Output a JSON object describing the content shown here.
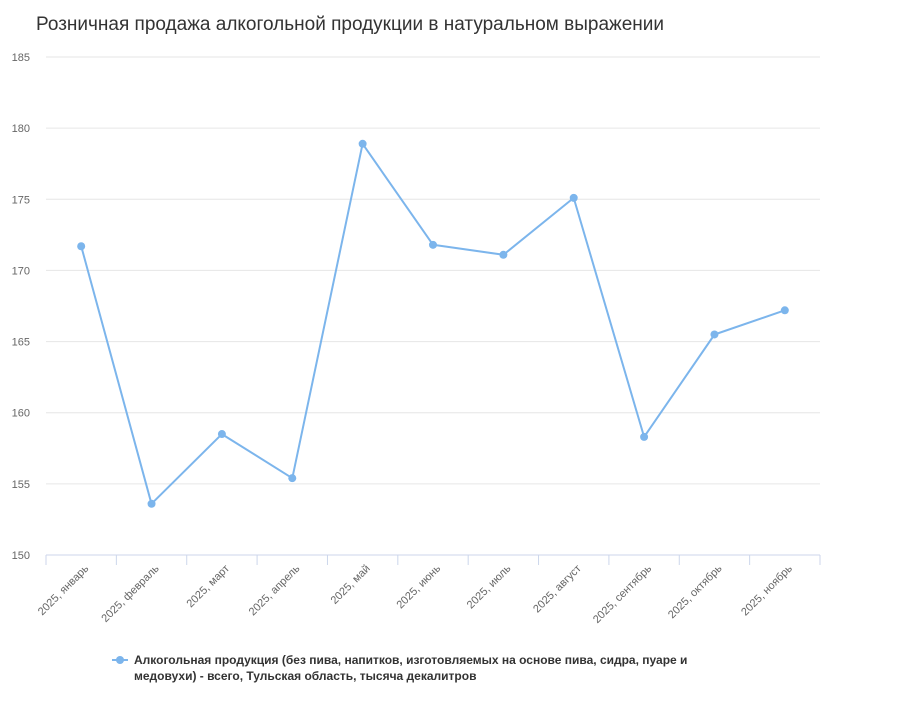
{
  "chart_data": {
    "type": "line",
    "title": "Розничная продажа алкогольной продукции в натуральном выражении",
    "categories": [
      "2025, январь",
      "2025, февраль",
      "2025, март",
      "2025, апрель",
      "2025, май",
      "2025, июнь",
      "2025, июль",
      "2025, август",
      "2025, сентябрь",
      "2025, октябрь",
      "2025, ноябрь"
    ],
    "series": [
      {
        "name": "Алкогольная продукция (без пива, напитков, изготовляемых на основе пива, сидра, пуаре и медовухи) - всего, Тульская область, тысяча декалитров",
        "values": [
          171.7,
          153.6,
          158.5,
          155.4,
          178.9,
          171.8,
          171.1,
          175.1,
          158.3,
          165.5,
          167.2
        ]
      }
    ],
    "ylim": [
      150,
      185
    ],
    "yticks": [
      150,
      155,
      160,
      165,
      170,
      175,
      180,
      185
    ],
    "grid": true,
    "legend": "bottom",
    "colors": {
      "series": "#7cb5ec",
      "grid": "#e6e6e6",
      "axis": "#ccd6eb",
      "text": "#666666"
    }
  }
}
